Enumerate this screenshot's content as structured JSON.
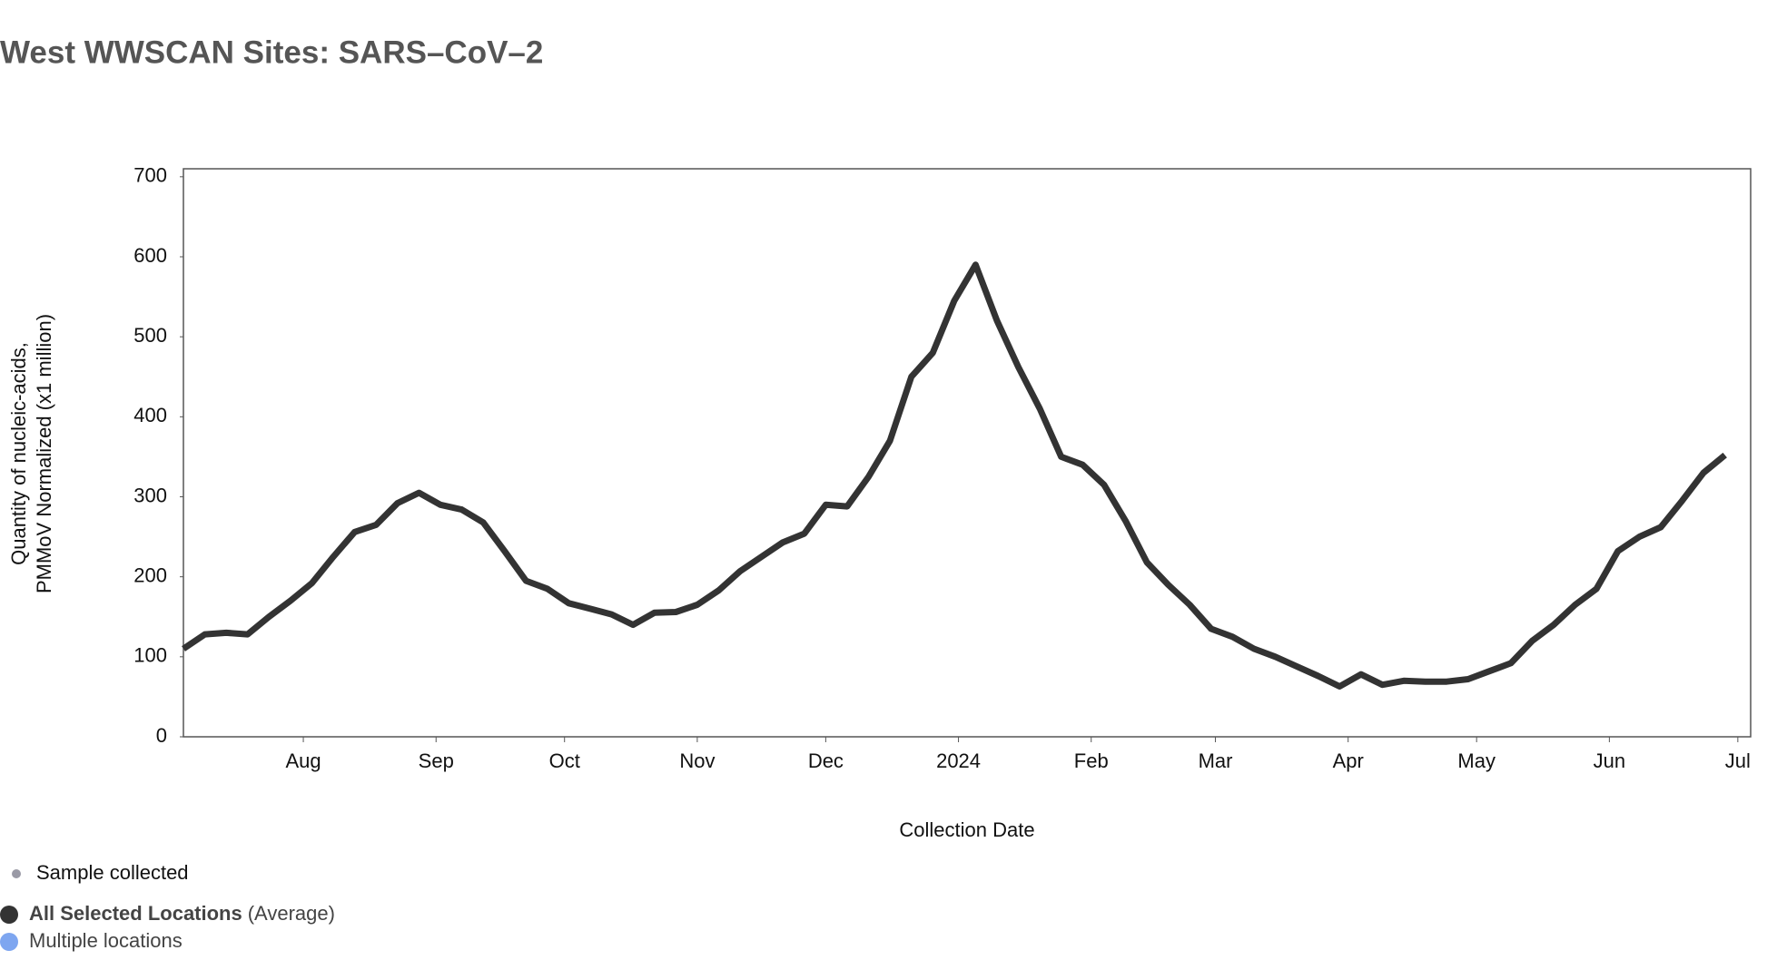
{
  "chart_data": {
    "type": "line",
    "title": "West WWSCAN Sites: SARS–CoV–2",
    "x_label": "Collection Date",
    "y_label": [
      "Quantity of nucleic-acids,",
      "PMMoV Normalized (x1 million)"
    ],
    "x": [
      "2023-07-04",
      "2023-07-09",
      "2023-07-14",
      "2023-07-19",
      "2023-07-24",
      "2023-07-29",
      "2023-08-03",
      "2023-08-08",
      "2023-08-13",
      "2023-08-18",
      "2023-08-23",
      "2023-08-28",
      "2023-09-02",
      "2023-09-07",
      "2023-09-12",
      "2023-09-17",
      "2023-09-22",
      "2023-09-27",
      "2023-10-02",
      "2023-10-07",
      "2023-10-12",
      "2023-10-17",
      "2023-10-22",
      "2023-10-27",
      "2023-11-01",
      "2023-11-06",
      "2023-11-11",
      "2023-11-16",
      "2023-11-21",
      "2023-11-26",
      "2023-12-01",
      "2023-12-06",
      "2023-12-11",
      "2023-12-16",
      "2023-12-21",
      "2023-12-26",
      "2023-12-31",
      "2024-01-05",
      "2024-01-10",
      "2024-01-15",
      "2024-01-20",
      "2024-01-25",
      "2024-01-30",
      "2024-02-04",
      "2024-02-09",
      "2024-02-14",
      "2024-02-19",
      "2024-02-24",
      "2024-02-29",
      "2024-03-05",
      "2024-03-10",
      "2024-03-15",
      "2024-03-20",
      "2024-03-25",
      "2024-03-30",
      "2024-04-04",
      "2024-04-09",
      "2024-04-14",
      "2024-04-19",
      "2024-04-24",
      "2024-04-29",
      "2024-05-04",
      "2024-05-09",
      "2024-05-14",
      "2024-05-19",
      "2024-05-24",
      "2024-05-29",
      "2024-06-03",
      "2024-06-08",
      "2024-06-13",
      "2024-06-18",
      "2024-06-23",
      "2024-06-28"
    ],
    "series": [
      {
        "name": "All Selected Locations",
        "color": "#333333",
        "values": [
          110,
          128,
          130,
          128,
          150,
          170,
          192,
          225,
          256,
          265,
          292,
          305,
          290,
          284,
          268,
          232,
          195,
          185,
          167,
          160,
          153,
          140,
          155,
          156,
          165,
          183,
          207,
          225,
          243,
          254,
          290,
          288,
          325,
          370,
          450,
          480,
          545,
          590,
          520,
          462,
          410,
          350,
          340,
          315,
          270,
          218,
          190,
          165,
          135,
          125,
          110,
          100,
          88,
          76,
          63,
          78,
          65,
          70,
          69,
          69,
          72,
          82,
          92,
          120,
          140,
          165,
          185,
          232,
          250,
          262,
          295,
          330,
          352
        ]
      }
    ],
    "xlim": [
      "2023-07-04",
      "2024-07-04"
    ],
    "xticks": [
      {
        "value": "2023-08-01",
        "label": "Aug"
      },
      {
        "value": "2023-09-01",
        "label": "Sep"
      },
      {
        "value": "2023-10-01",
        "label": "Oct"
      },
      {
        "value": "2023-11-01",
        "label": "Nov"
      },
      {
        "value": "2023-12-01",
        "label": "Dec"
      },
      {
        "value": "2024-01-01",
        "label": "2024"
      },
      {
        "value": "2024-02-01",
        "label": "Feb"
      },
      {
        "value": "2024-03-01",
        "label": "Mar"
      },
      {
        "value": "2024-04-01",
        "label": "Apr"
      },
      {
        "value": "2024-05-01",
        "label": "May"
      },
      {
        "value": "2024-06-01",
        "label": "Jun"
      },
      {
        "value": "2024-07-01",
        "label": "Jul"
      }
    ],
    "ylim": [
      0,
      710
    ],
    "yticks": [
      0,
      100,
      200,
      300,
      400,
      500,
      600,
      700
    ],
    "legend": [
      {
        "label": "Sample collected",
        "color": "#9a9aa6"
      },
      {
        "label": "All Selected Locations",
        "note": "(Average)",
        "color": "#333333"
      },
      {
        "label": "Multiple locations",
        "color": "#7ea6f0"
      }
    ]
  }
}
